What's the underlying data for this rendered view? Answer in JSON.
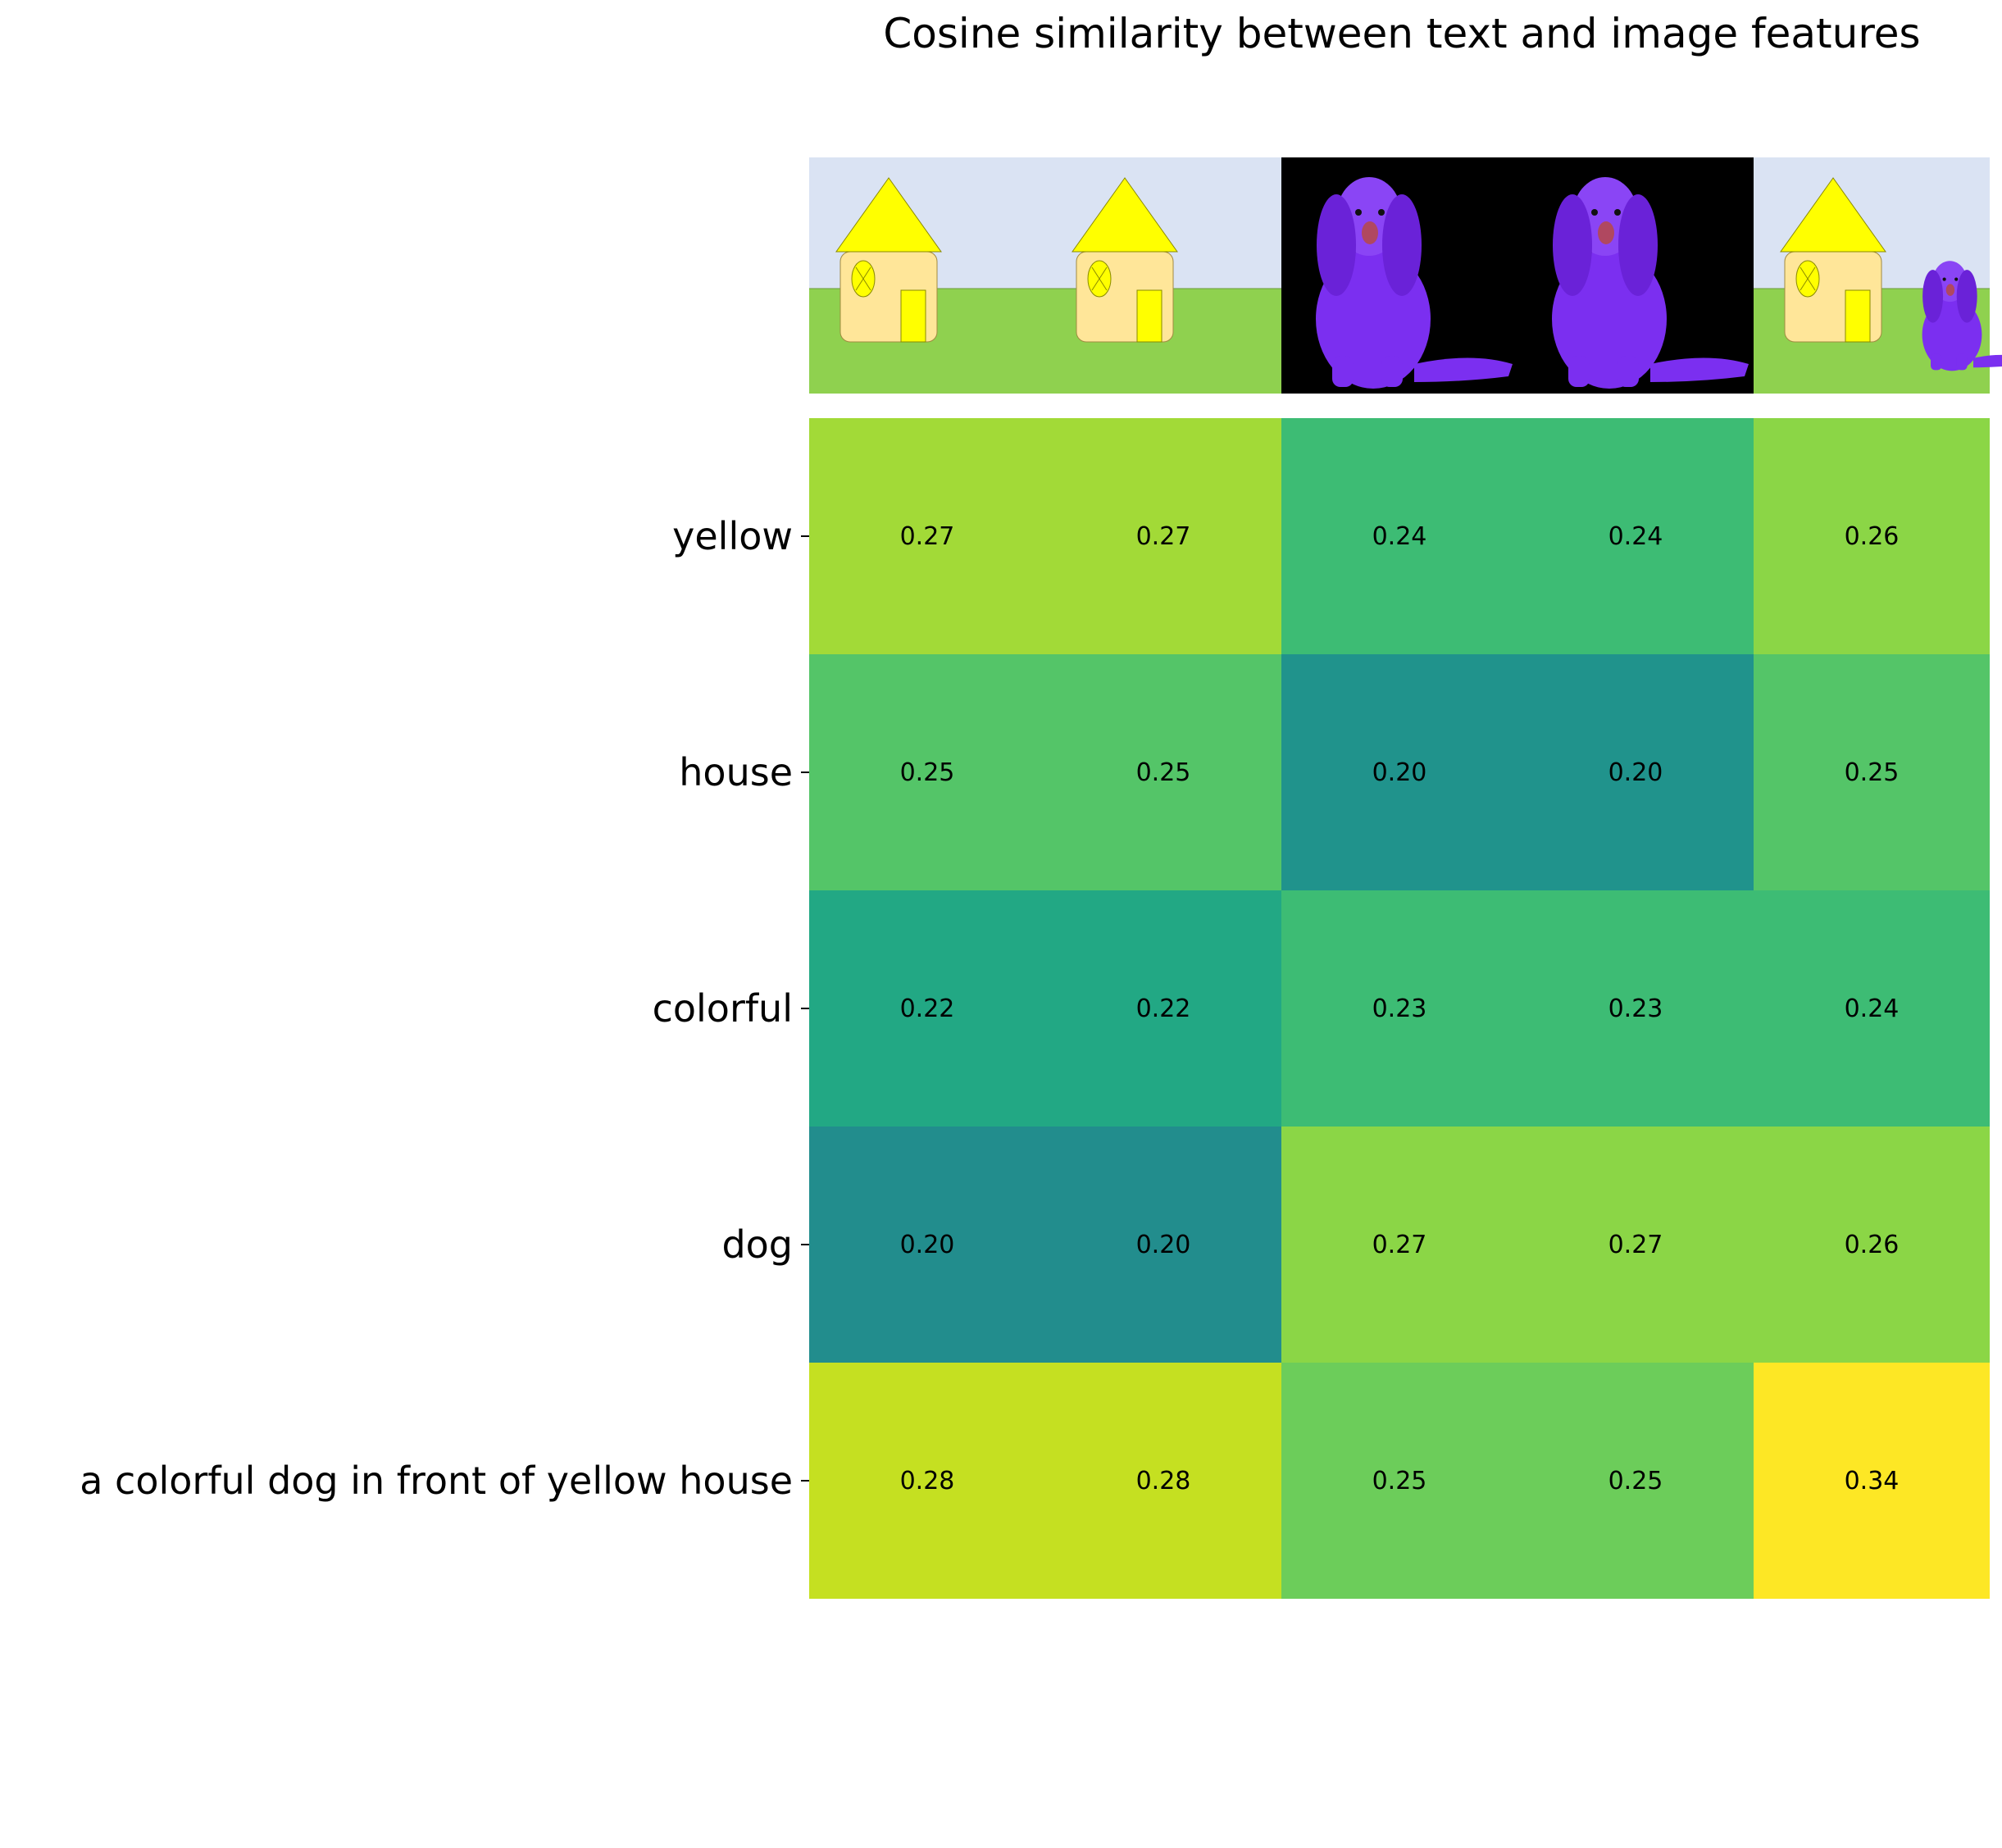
{
  "chart_data": {
    "type": "heatmap",
    "title": "Cosine similarity between text and image features",
    "xlabel": "",
    "ylabel": "",
    "rows": [
      "yellow",
      "house",
      "colorful",
      "dog",
      "a colorful dog in front of yellow house"
    ],
    "columns": [
      "yellow house image",
      "yellow house image",
      "purple dog image",
      "purple dog image",
      "yellow house with purple dog image"
    ],
    "values": [
      [
        0.27,
        0.27,
        0.24,
        0.24,
        0.26
      ],
      [
        0.25,
        0.25,
        0.2,
        0.2,
        0.25
      ],
      [
        0.22,
        0.22,
        0.23,
        0.23,
        0.24
      ],
      [
        0.2,
        0.2,
        0.27,
        0.27,
        0.26
      ],
      [
        0.28,
        0.28,
        0.25,
        0.25,
        0.34
      ]
    ],
    "cell_labels": [
      [
        "0.27",
        "0.27",
        "0.24",
        "0.24",
        "0.26"
      ],
      [
        "0.25",
        "0.25",
        "0.20",
        "0.20",
        "0.25"
      ],
      [
        "0.22",
        "0.22",
        "0.23",
        "0.23",
        "0.24"
      ],
      [
        "0.20",
        "0.20",
        "0.27",
        "0.27",
        "0.26"
      ],
      [
        "0.28",
        "0.28",
        "0.25",
        "0.25",
        "0.34"
      ]
    ],
    "vmin": 0.2,
    "vmax": 0.34,
    "colormap": "viridis",
    "grid": false
  },
  "colors": {
    "cells": [
      [
        "#a2da37",
        "#a2da37",
        "#3dbc74",
        "#3dbc74",
        "#8bd646"
      ],
      [
        "#54c568",
        "#54c568",
        "#20938c",
        "#20938c",
        "#54c568"
      ],
      [
        "#22a884",
        "#22a884",
        "#3dbc74",
        "#3dbc74",
        "#3dbc74"
      ],
      [
        "#228d8d",
        "#228d8d",
        "#8bd646",
        "#8bd646",
        "#8bd646"
      ],
      [
        "#c5e021",
        "#c5e021",
        "#6ccd5a",
        "#6ccd5a",
        "#fde725"
      ]
    ],
    "sky": "#dae3f3",
    "grass": "#8fd14f",
    "house_wall": "#ffe699",
    "roof_yellow": "#ffff00",
    "dog_purple": "#7b2ff0",
    "photo_background": "#000000"
  },
  "thumbnails": [
    "house",
    "house",
    "dog",
    "dog",
    "house-with-dog"
  ]
}
